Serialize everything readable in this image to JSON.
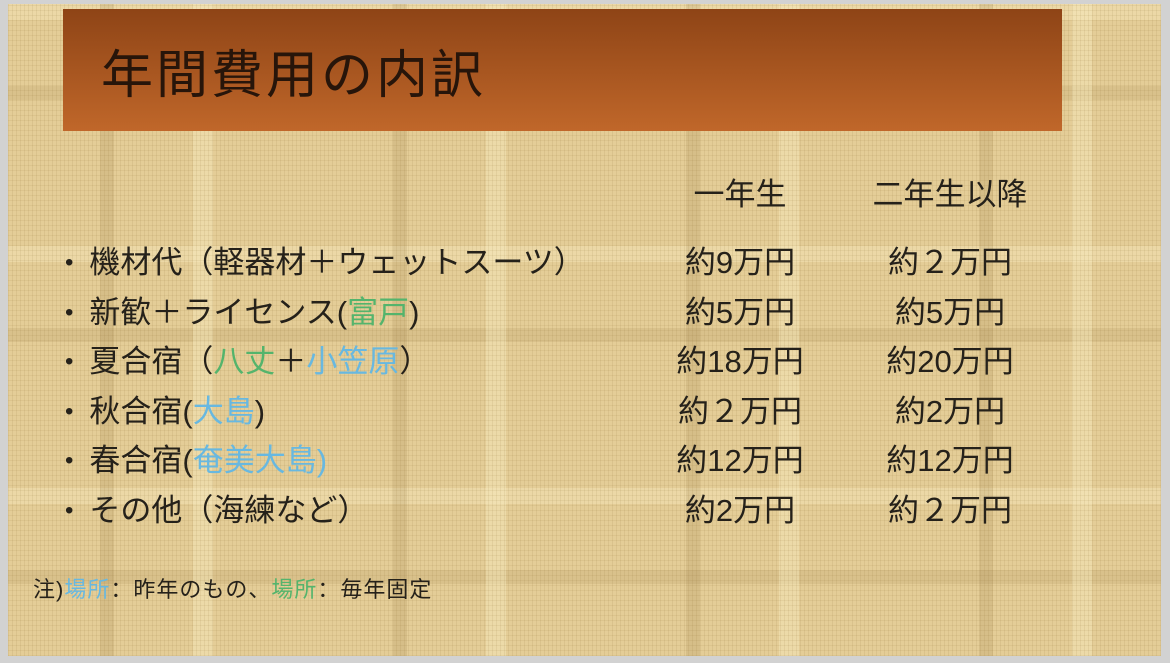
{
  "frame": {
    "background": "#d2d2d2"
  },
  "slide": {
    "title": "年間費用の内訳",
    "paper_color": "#e4cd97",
    "banner_top_color": "#8e4416",
    "banner_bottom_color": "#c0672a"
  },
  "colors": {
    "default": "#25211a",
    "title": "#27150a",
    "green": "#54b46c",
    "blue": "#68b8e0"
  },
  "table": {
    "bullet": "•",
    "columns": [
      "一年生",
      "二年生以降"
    ],
    "rows": [
      {
        "item": [
          {
            "text": "機材代（軽器材＋ウェットスーツ）",
            "color": "default"
          }
        ],
        "year1": "約9万円",
        "year2": "約２万円"
      },
      {
        "item": [
          {
            "text": "新歓＋ライセンス(",
            "color": "default"
          },
          {
            "text": "富戸",
            "color": "green"
          },
          {
            "text": ")",
            "color": "default"
          }
        ],
        "year1": "約5万円",
        "year2": "約5万円"
      },
      {
        "item": [
          {
            "text": "夏合宿（",
            "color": "default"
          },
          {
            "text": "八丈",
            "color": "green"
          },
          {
            "text": "＋",
            "color": "default"
          },
          {
            "text": "小笠原",
            "color": "blue"
          },
          {
            "text": "）",
            "color": "default"
          }
        ],
        "year1": "約18万円",
        "year2": "約20万円"
      },
      {
        "item": [
          {
            "text": "秋合宿(",
            "color": "default"
          },
          {
            "text": "大島",
            "color": "blue"
          },
          {
            "text": ")",
            "color": "default"
          }
        ],
        "year1": "約２万円",
        "year2": "約2万円"
      },
      {
        "item": [
          {
            "text": "春合宿(",
            "color": "default"
          },
          {
            "text": "奄美大島)",
            "color": "blue"
          }
        ],
        "year1": "約12万円",
        "year2": "約12万円"
      },
      {
        "item": [
          {
            "text": "その他（海練など）",
            "color": "default"
          }
        ],
        "year1": "約2万円",
        "year2": "約２万円"
      }
    ]
  },
  "note": {
    "segments": [
      {
        "text": "注)",
        "color": "default"
      },
      {
        "text": "場所",
        "color": "blue"
      },
      {
        "text": "：昨年のもの、",
        "color": "default"
      },
      {
        "text": "場所",
        "color": "green"
      },
      {
        "text": "：毎年固定",
        "color": "default"
      }
    ]
  }
}
